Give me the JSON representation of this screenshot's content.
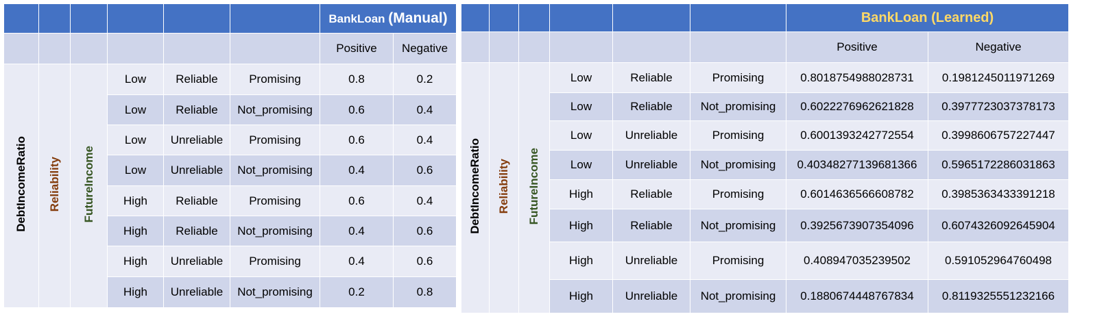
{
  "manual": {
    "title_main": "BankLoan",
    "title_paren": "(Manual)",
    "col_positive": "Positive",
    "col_negative": "Negative",
    "var_debt": "DebtIncomeRatio",
    "var_reliability": "Reliability",
    "var_future": "FutureIncome",
    "rows": [
      {
        "debt": "Low",
        "rel": "Reliable",
        "fut": "Promising",
        "pos": "0.8",
        "neg": "0.2"
      },
      {
        "debt": "Low",
        "rel": "Reliable",
        "fut": "Not_promising",
        "pos": "0.6",
        "neg": "0.4"
      },
      {
        "debt": "Low",
        "rel": "Unreliable",
        "fut": "Promising",
        "pos": "0.6",
        "neg": "0.4"
      },
      {
        "debt": "Low",
        "rel": "Unreliable",
        "fut": "Not_promising",
        "pos": "0.4",
        "neg": "0.6"
      },
      {
        "debt": "High",
        "rel": "Reliable",
        "fut": "Promising",
        "pos": "0.6",
        "neg": "0.4"
      },
      {
        "debt": "High",
        "rel": "Reliable",
        "fut": "Not_promising",
        "pos": "0.4",
        "neg": "0.6"
      },
      {
        "debt": "High",
        "rel": "Unreliable",
        "fut": "Promising",
        "pos": "0.4",
        "neg": "0.6"
      },
      {
        "debt": "High",
        "rel": "Unreliable",
        "fut": "Not_promising",
        "pos": "0.2",
        "neg": "0.8"
      }
    ]
  },
  "learned": {
    "title": "BankLoan (Learned)",
    "col_positive": "Positive",
    "col_negative": "Negative",
    "var_debt": "DebtIncomeRatio",
    "var_reliability": "Reliability",
    "var_future": "FutureIncome",
    "rows": [
      {
        "debt": "Low",
        "rel": "Reliable",
        "fut": "Promising",
        "pos": "0.8018754988028731",
        "neg": "0.1981245011971269"
      },
      {
        "debt": "Low",
        "rel": "Reliable",
        "fut": "Not_promising",
        "pos": "0.6022276962621828",
        "neg": "0.3977723037378173"
      },
      {
        "debt": "Low",
        "rel": "Unreliable",
        "fut": "Promising",
        "pos": "0.6001393242772554",
        "neg": "0.3998606757227447"
      },
      {
        "debt": "Low",
        "rel": "Unreliable",
        "fut": "Not_promising",
        "pos": "0.40348277139681366",
        "neg": "0.5965172286031863"
      },
      {
        "debt": "High",
        "rel": "Reliable",
        "fut": "Promising",
        "pos": "0.6014636566608782",
        "neg": "0.3985363433391218"
      },
      {
        "debt": "High",
        "rel": "Reliable",
        "fut": "Not_promising",
        "pos": "0.3925673907354096",
        "neg": "0.6074326092645904"
      },
      {
        "debt": "High",
        "rel": "Unreliable",
        "fut": "Promising",
        "pos": "0.408947035239502",
        "neg": "0.591052964760498"
      },
      {
        "debt": "High",
        "rel": "Unreliable",
        "fut": "Not_promising",
        "pos": "0.1880674448767834",
        "neg": "0.8119325551232166"
      }
    ]
  }
}
